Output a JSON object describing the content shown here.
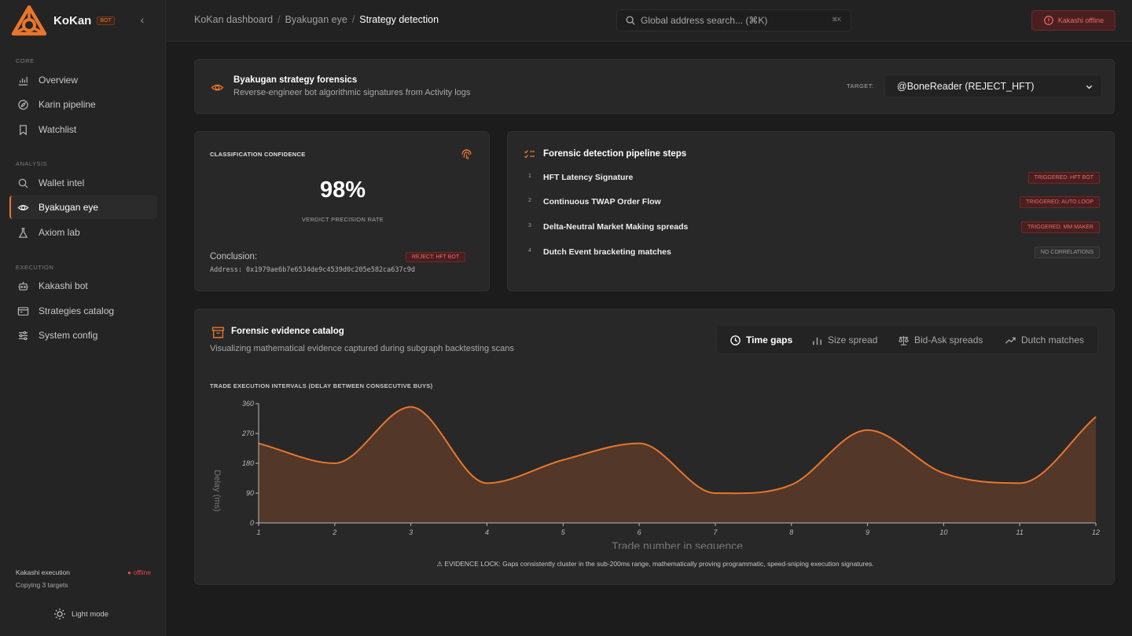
{
  "app": {
    "name": "KoKan",
    "badge": "BOT"
  },
  "sidebar": {
    "sections": [
      {
        "title": "CORE",
        "items": [
          {
            "label": "Overview",
            "icon": "chart-icon"
          },
          {
            "label": "Karin pipeline",
            "icon": "compass-icon"
          },
          {
            "label": "Watchlist",
            "icon": "bookmark-icon"
          }
        ]
      },
      {
        "title": "ANALYSIS",
        "items": [
          {
            "label": "Wallet intel",
            "icon": "search-icon"
          },
          {
            "label": "Byakugan eye",
            "icon": "eye-icon",
            "active": true
          },
          {
            "label": "Axiom lab",
            "icon": "flask-icon"
          }
        ]
      },
      {
        "title": "EXECUTION",
        "items": [
          {
            "label": "Kakashi bot",
            "icon": "bot-icon"
          },
          {
            "label": "Strategies catalog",
            "icon": "terminal-icon"
          },
          {
            "label": "System config",
            "icon": "sliders-icon"
          }
        ]
      }
    ],
    "status": {
      "label": "Kakashi execution",
      "state": "● offline",
      "sub": "Copying 3 targets"
    },
    "light_mode": "Light mode"
  },
  "topbar": {
    "breadcrumbs": [
      "KoKan dashboard",
      "Byakugan eye",
      "Strategy detection"
    ],
    "search_placeholder": "Global address search... (⌘K)",
    "search_kbd": "⌘K",
    "status_button": "Kakashi offline"
  },
  "header": {
    "title": "Byakugan strategy forensics",
    "subtitle": "Reverse-engineer bot algorithmic signatures from Activity logs",
    "target_label": "TARGET:",
    "target_value": "@BoneReader (REJECT_HFT)"
  },
  "confidence": {
    "title": "CLASSIFICATION CONFIDENCE",
    "value": "98%",
    "label": "VERDICT PRECISION RATE",
    "conclusion_label": "Conclusion:",
    "conclusion_badge": "REJECT: HFT BOT",
    "address": "Address: 0x1979ae6b7e6534de9c4539d0c205e582ca637c9d"
  },
  "pipeline": {
    "title": "Forensic detection pipeline steps",
    "steps": [
      {
        "num": "1",
        "name": "HFT Latency Signature",
        "badge": "TRIGGERED: HFT BOT",
        "triggered": true
      },
      {
        "num": "2",
        "name": "Continuous TWAP Order Flow",
        "badge": "TRIGGERED: AUTO LOOP",
        "triggered": true
      },
      {
        "num": "3",
        "name": "Delta-Neutral Market Making spreads",
        "badge": "TRIGGERED: MM MAKER",
        "triggered": true
      },
      {
        "num": "4",
        "name": "Dutch Event bracketing matches",
        "badge": "NO CORRELATIONS",
        "triggered": false
      }
    ]
  },
  "evidence": {
    "title": "Forensic evidence catalog",
    "subtitle": "Visualizing mathematical evidence captured during subgraph backtesting scans",
    "tabs": [
      {
        "label": "Time gaps",
        "icon": "clock-icon",
        "active": true
      },
      {
        "label": "Size spread",
        "icon": "bar-chart-icon"
      },
      {
        "label": "Bid-Ask spreads",
        "icon": "scale-icon"
      },
      {
        "label": "Dutch matches",
        "icon": "trend-icon"
      }
    ],
    "chart_caption": "TRADE EXECUTION INTERVALS (DELAY BETWEEN CONSECUTIVE BUYS)",
    "note": "⚠ EVIDENCE LOCK: Gaps consistently cluster in the sub-200ms range, mathematically proving programmatic, speed-sniping execution signatures."
  },
  "chart_data": {
    "type": "area",
    "x": [
      1,
      2,
      3,
      4,
      5,
      6,
      7,
      8,
      9,
      10,
      11,
      12
    ],
    "series": [
      {
        "values": [
          240,
          180,
          350,
          120,
          190,
          240,
          90,
          115,
          280,
          150,
          120,
          320
        ]
      }
    ],
    "xlabel": "Trade number in sequence",
    "ylabel": "Delay (ms)",
    "yticks": [
      0,
      90,
      180,
      270,
      360
    ],
    "ylim": [
      0,
      360
    ],
    "xlim": [
      1,
      12
    ],
    "line_color": "#e8762c",
    "fill_color": "#5a3a28",
    "grid": false
  },
  "colors": {
    "accent": "#e8762c",
    "danger": "#e86b6b",
    "background": "#1c1c1c",
    "card": "#282828"
  }
}
